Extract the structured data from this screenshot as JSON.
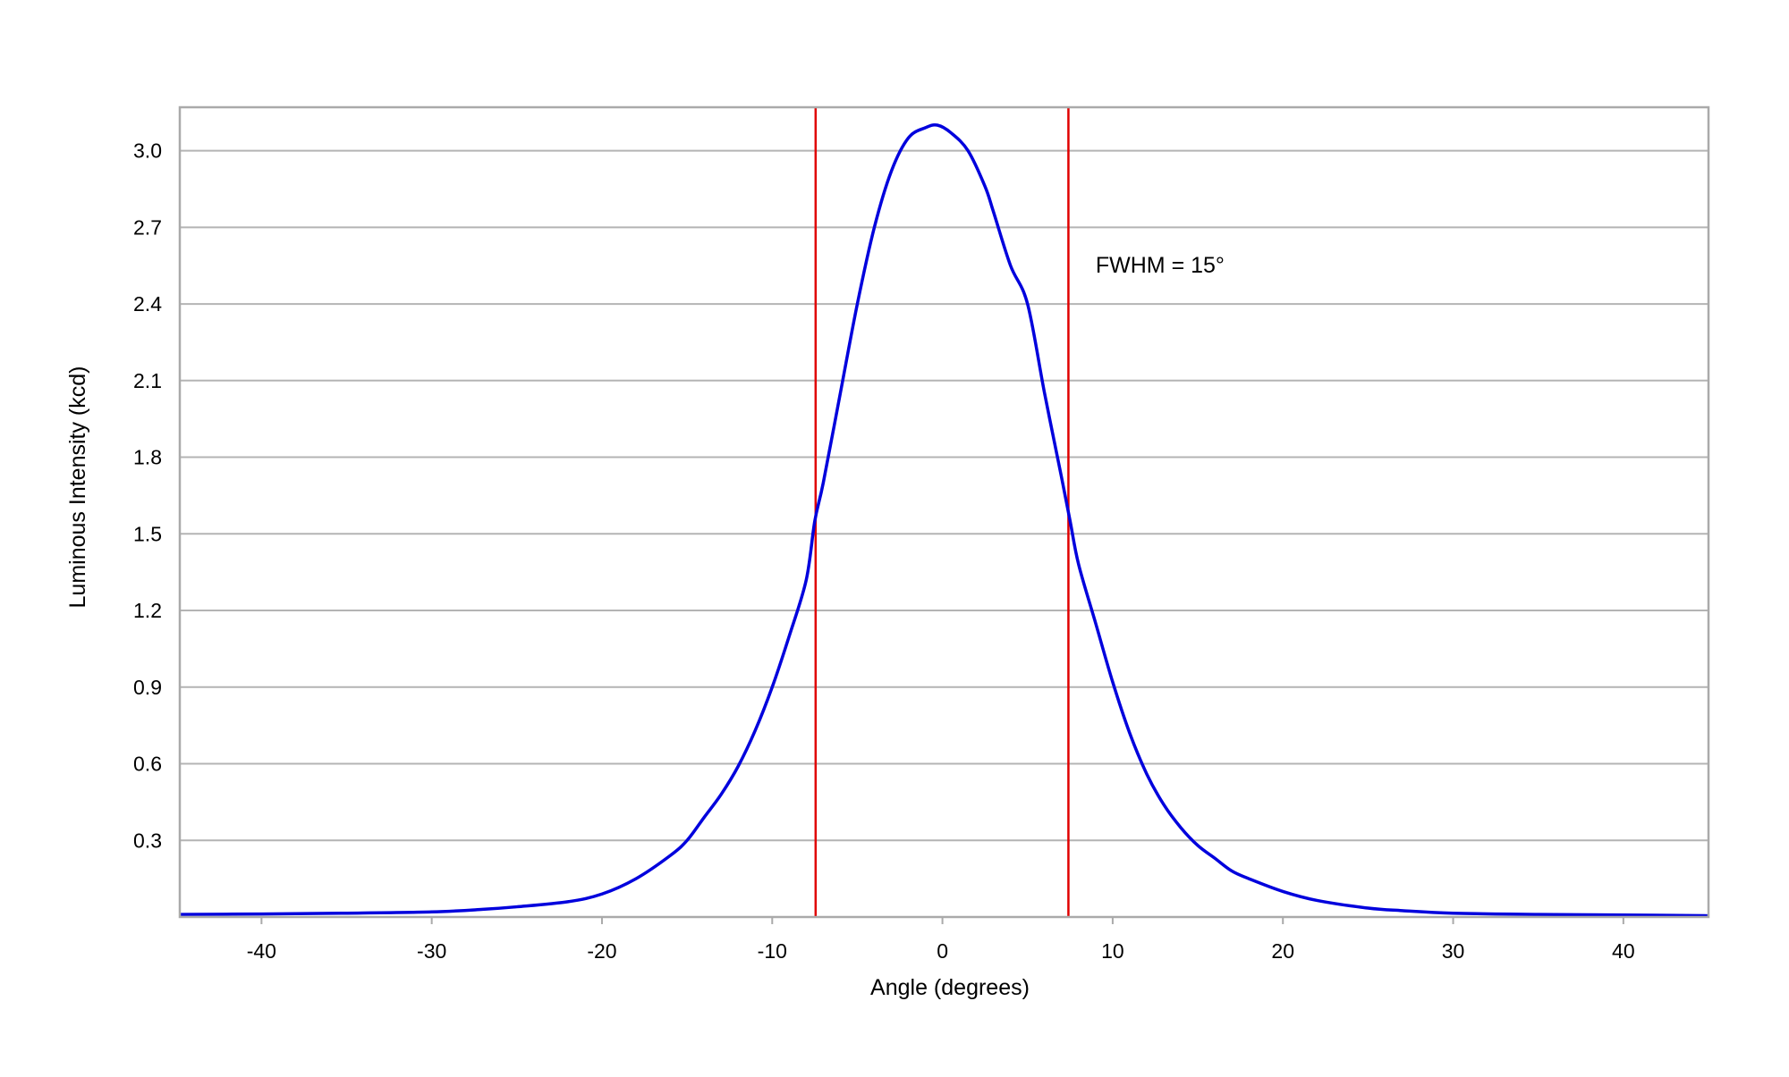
{
  "chart_data": {
    "type": "line",
    "title": "",
    "xlabel": "Angle (degrees)",
    "ylabel": "Luminous Intensity (kcd)",
    "xlim": [
      -44.8,
      45
    ],
    "ylim": [
      0,
      3.17
    ],
    "grid": "horizontal",
    "x_ticks": [
      -40,
      -30,
      -20,
      -10,
      0,
      10,
      20,
      30,
      40
    ],
    "x_tick_labels": [
      "-40",
      "-30",
      "-20",
      "-10",
      "0",
      "10",
      "20",
      "30",
      "40"
    ],
    "y_ticks": [
      0.3,
      0.6,
      0.9,
      1.2,
      1.5,
      1.8,
      2.1,
      2.4,
      2.7,
      3.0
    ],
    "y_tick_labels": [
      "0.3",
      "0.6",
      "0.9",
      "1.2",
      "1.5",
      "1.8",
      "2.1",
      "2.4",
      "2.7",
      "3.0"
    ],
    "series": [
      {
        "name": "Luminous Intensity",
        "color": "#0000dd",
        "x": [
          -44.8,
          -40,
          -35,
          -30,
          -27,
          -25,
          -22,
          -20,
          -18,
          -16,
          -15,
          -14,
          -13,
          -12,
          -11,
          -10,
          -9,
          -8,
          -7.5,
          -7,
          -6,
          -5,
          -4,
          -3,
          -2,
          -1,
          -0.3,
          0.5,
          1.5,
          2.5,
          3,
          4,
          5,
          6,
          7,
          7.5,
          8,
          9,
          10,
          11,
          12,
          13,
          14,
          15,
          16,
          17,
          18,
          20,
          22,
          25,
          27,
          30,
          35,
          40,
          45
        ],
        "y": [
          0.01,
          0.012,
          0.015,
          0.02,
          0.03,
          0.04,
          0.06,
          0.09,
          0.15,
          0.24,
          0.3,
          0.39,
          0.48,
          0.59,
          0.73,
          0.9,
          1.1,
          1.32,
          1.55,
          1.7,
          2.05,
          2.4,
          2.7,
          2.92,
          3.05,
          3.09,
          3.1,
          3.07,
          3.0,
          2.86,
          2.76,
          2.55,
          2.4,
          2.05,
          1.72,
          1.55,
          1.38,
          1.15,
          0.92,
          0.72,
          0.56,
          0.44,
          0.35,
          0.28,
          0.23,
          0.18,
          0.15,
          0.1,
          0.065,
          0.035,
          0.025,
          0.015,
          0.01,
          0.008,
          0.005
        ]
      }
    ],
    "vertical_lines": [
      {
        "x": -7.45,
        "color": "#e00000"
      },
      {
        "x": 7.4,
        "color": "#e00000"
      }
    ],
    "annotations": [
      {
        "text": "FWHM = 15°",
        "x": 9,
        "y": 2.55
      }
    ]
  }
}
